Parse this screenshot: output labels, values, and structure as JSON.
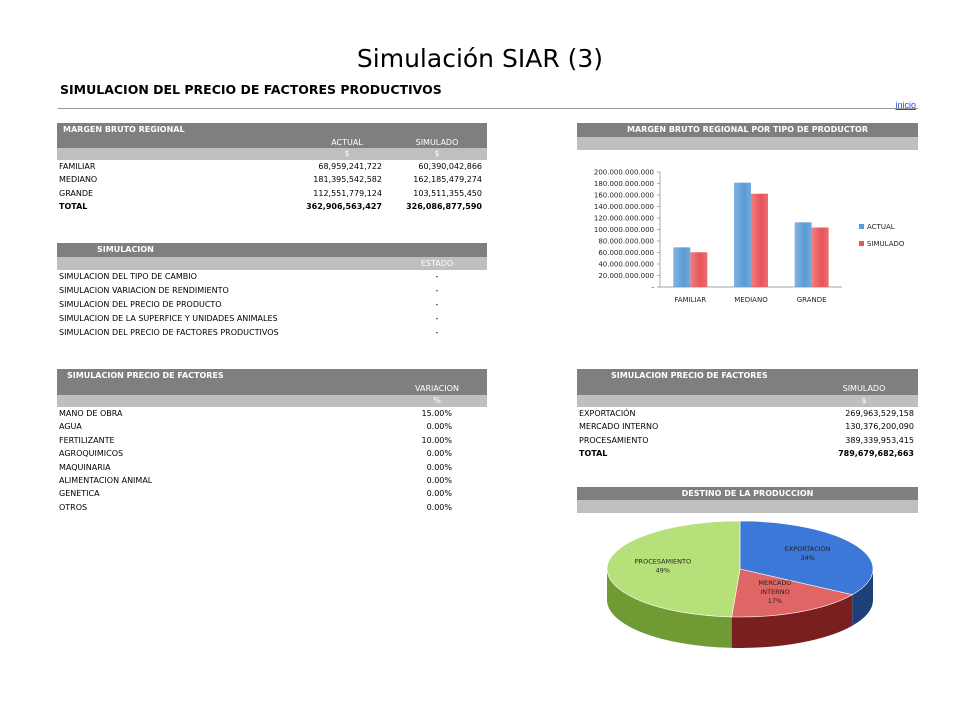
{
  "slide": {
    "title": "Simulación SIAR (3)"
  },
  "page": {
    "heading": "SIMULACION DEL PRECIO DE FACTORES PRODUCTIVOS",
    "inicio_link": "inicio"
  },
  "margen": {
    "title": "MARGEN BRUTO REGIONAL",
    "col_actual": "ACTUAL",
    "col_simulado": "SIMULADO",
    "unit_actual": "$",
    "unit_simulado": "$",
    "rows": [
      {
        "label": "FAMILIAR",
        "actual": "68,959,241,722",
        "simulado": "60,390,042,866"
      },
      {
        "label": "MEDIANO",
        "actual": "181,395,542,582",
        "simulado": "162,185,479,274"
      },
      {
        "label": "GRANDE",
        "actual": "112,551,779,124",
        "simulado": "103,511,355,450"
      },
      {
        "label": "TOTAL",
        "actual": "362,906,563,427",
        "simulado": "326,086,877,590"
      }
    ]
  },
  "simulacion": {
    "title": "SIMULACION",
    "col_estado": "ESTADO",
    "rows": [
      {
        "label": "SIMULACION DEL TIPO DE CAMBIO",
        "estado": "-"
      },
      {
        "label": "SIMULACION VARIACION DE RENDIMIENTO",
        "estado": "-"
      },
      {
        "label": "SIMULACION DEL PRECIO DE PRODUCTO",
        "estado": "-"
      },
      {
        "label": "SIMULACION DE LA SUPERFICE Y UNIDADES ANIMALES",
        "estado": "-"
      },
      {
        "label": "SIMULACION DEL PRECIO DE FACTORES PRODUCTIVOS",
        "estado": "-"
      }
    ]
  },
  "factores": {
    "title": "SIMULACION PRECIO DE FACTORES",
    "col_variacion": "VARIACION",
    "unit": "%",
    "rows": [
      {
        "label": "MANO DE OBRA",
        "value": "15.00%"
      },
      {
        "label": "AGUA",
        "value": "0.00%"
      },
      {
        "label": "FERTILIZANTE",
        "value": "10.00%"
      },
      {
        "label": "AGROQUIMICOS",
        "value": "0.00%"
      },
      {
        "label": "MAQUINARIA",
        "value": "0.00%"
      },
      {
        "label": "ALIMENTACION ANIMAL",
        "value": "0.00%"
      },
      {
        "label": "GENETICA",
        "value": "0.00%"
      },
      {
        "label": "OTROS",
        "value": "0.00%"
      }
    ]
  },
  "destino_tabla": {
    "title": "SIMULACION PRECIO DE FACTORES",
    "col_simulado": "SIMULADO",
    "unit": "$",
    "rows": [
      {
        "label": "EXPORTACIÓN",
        "value": "269,963,529,158"
      },
      {
        "label": "MERCADO INTERNO",
        "value": "130,376,200,090"
      },
      {
        "label": "PROCESAMIENTO",
        "value": "389,339,953,415"
      },
      {
        "label": "TOTAL",
        "value": "789,679,682,663"
      }
    ]
  },
  "chart_data": [
    {
      "type": "bar",
      "title": "MARGEN  BRUTO REGIONAL POR TIPO DE PRODUCTOR",
      "categories": [
        "FAMILIAR",
        "MEDIANO",
        "GRANDE"
      ],
      "series": [
        {
          "name": "ACTUAL",
          "values": [
            68959241722,
            181395542582,
            112551779124
          ],
          "color": "#5b9bd5"
        },
        {
          "name": "SIMULADO",
          "values": [
            60390042866,
            162185479274,
            103511355450
          ],
          "color": "#e8545a"
        }
      ],
      "ylim": [
        0,
        200000000000
      ],
      "ytick_labels": [
        "-",
        "20.000.000.000",
        "40.000.000.000",
        "60.000.000.000",
        "80.000.000.000",
        "100.000.000.000",
        "120.000.000.000",
        "140.000.000.000",
        "160.000.000.000",
        "180.000.000.000",
        "200.000.000.000"
      ],
      "legend": "right",
      "grid": false
    },
    {
      "type": "pie",
      "title": "DESTINO DE LA PRODUCCION",
      "slices": [
        {
          "label_lines": [
            "EXPORTACIÓN",
            "34%"
          ],
          "value": 34,
          "color": "#3c78d8",
          "side_color": "#1f3f7a"
        },
        {
          "label_lines": [
            "MERCADO",
            "INTERNO",
            "17%"
          ],
          "value": 17,
          "color": "#e06666",
          "side_color": "#7a1f1f"
        },
        {
          "label_lines": [
            "PROCESAMIENTO",
            "49%"
          ],
          "value": 49,
          "color": "#b6e07a",
          "side_color": "#6f9a34"
        }
      ]
    }
  ]
}
